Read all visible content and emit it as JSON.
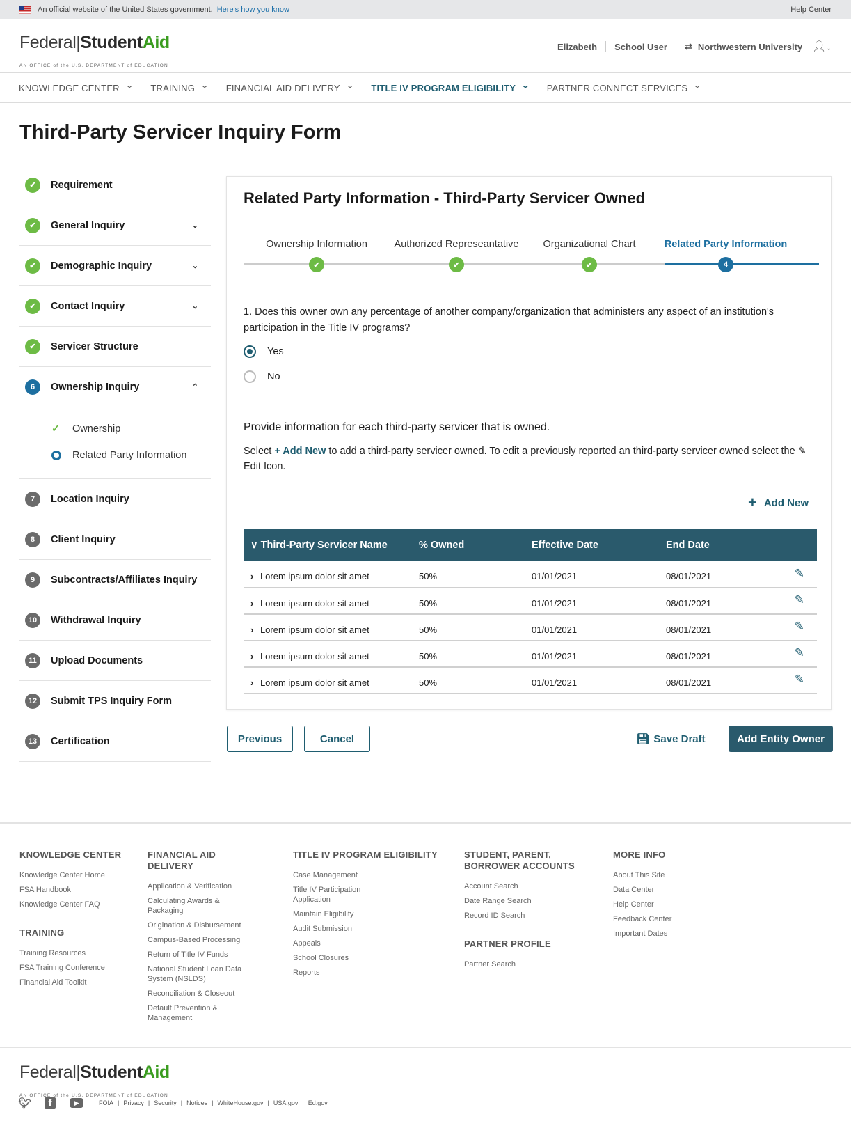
{
  "banner": {
    "text": "An official website of the United States government.",
    "link": "Here's how you know",
    "help": "Help Center"
  },
  "logo": {
    "federal": "Federal",
    "student": "Student",
    "aid": "Aid",
    "sub": "AN OFFICE of the U.S. DEPARTMENT of EDUCATION"
  },
  "user": {
    "name": "Elizabeth",
    "role": "School User",
    "org": "Northwestern University"
  },
  "nav": [
    {
      "label": "KNOWLEDGE CENTER"
    },
    {
      "label": "TRAINING"
    },
    {
      "label": "FINANCIAL AID DELIVERY"
    },
    {
      "label": "TITLE IV PROGRAM ELIGIBILITY",
      "active": true
    },
    {
      "label": "PARTNER CONNECT SERVICES"
    }
  ],
  "page_title": "Third-Party Servicer Inquiry Form",
  "sidebar": [
    {
      "label": "Requirement",
      "status": "done",
      "expand": ""
    },
    {
      "label": "General Inquiry",
      "status": "done",
      "expand": "v"
    },
    {
      "label": "Demographic Inquiry",
      "status": "done",
      "expand": "v"
    },
    {
      "label": "Contact Inquiry",
      "status": "done",
      "expand": "v"
    },
    {
      "label": "Servicer Structure",
      "status": "done",
      "expand": ""
    },
    {
      "label": "Ownership Inquiry",
      "status": "current",
      "num": "6",
      "expand": "^",
      "subitems": [
        {
          "label": "Ownership",
          "status": "done"
        },
        {
          "label": "Related Party Information",
          "status": "current"
        }
      ]
    },
    {
      "label": "Location Inquiry",
      "status": "todo",
      "num": "7",
      "expand": ""
    },
    {
      "label": "Client Inquiry",
      "status": "todo",
      "num": "8",
      "expand": ""
    },
    {
      "label": "Subcontracts/Affiliates Inquiry",
      "status": "todo",
      "num": "9",
      "expand": ""
    },
    {
      "label": "Withdrawal Inquiry",
      "status": "todo",
      "num": "10",
      "expand": ""
    },
    {
      "label": "Upload Documents",
      "status": "todo",
      "num": "11",
      "expand": ""
    },
    {
      "label": "Submit TPS Inquiry Form",
      "status": "todo",
      "num": "12",
      "expand": ""
    },
    {
      "label": "Certification",
      "status": "todo",
      "num": "13",
      "expand": ""
    }
  ],
  "card": {
    "title": "Related Party Information - Third-Party Servicer Owned",
    "steps": [
      {
        "label": "Ownership Information",
        "status": "done"
      },
      {
        "label": "Authorized Represeantative",
        "status": "done"
      },
      {
        "label": "Organizational Chart",
        "status": "done"
      },
      {
        "label": "Related Party Information",
        "status": "current",
        "num": "4"
      }
    ],
    "question": "1. Does this owner own any percentage of another company/organization that administers any aspect of an institution's participation in the Title IV programs?",
    "options": [
      {
        "label": "Yes",
        "selected": true
      },
      {
        "label": "No",
        "selected": false
      }
    ],
    "provide": "Provide information for each third-party servicer that is owned.",
    "instr_1": "Select ",
    "instr_add": "+ Add New",
    "instr_2": " to add a third-party servicer owned. To edit a previously reported an third-party servicer owned select the ",
    "instr_3": " Edit Icon.",
    "add_new": "Add New",
    "table": {
      "headers": [
        "Third-Party Servicer Name",
        "% Owned",
        "Effective  Date",
        "End Date"
      ],
      "rows": [
        [
          "Lorem ipsum dolor sit amet",
          "50%",
          "01/01/2021",
          "08/01/2021"
        ],
        [
          "Lorem ipsum dolor sit amet",
          "50%",
          "01/01/2021",
          "08/01/2021"
        ],
        [
          "Lorem ipsum dolor sit amet",
          "50%",
          "01/01/2021",
          "08/01/2021"
        ],
        [
          "Lorem ipsum dolor sit amet",
          "50%",
          "01/01/2021",
          "08/01/2021"
        ],
        [
          "Lorem ipsum dolor sit amet",
          "50%",
          "01/01/2021",
          "08/01/2021"
        ]
      ]
    }
  },
  "actions": {
    "previous": "Previous",
    "cancel": "Cancel",
    "save": "Save Draft",
    "add_owner": "Add Entity Owner"
  },
  "footer": {
    "cols": [
      {
        "sections": [
          {
            "title": "KNOWLEDGE CENTER",
            "links": [
              "Knowledge Center Home",
              "FSA Handbook",
              "Knowledge Center FAQ"
            ]
          },
          {
            "title": "TRAINING",
            "links": [
              "Training Resources",
              "FSA Training Conference",
              "Financial Aid Toolkit"
            ]
          }
        ]
      },
      {
        "sections": [
          {
            "title": "FINANCIAL AID DELIVERY",
            "links": [
              "Application & Verification",
              "Calculating Awards & Packaging",
              "Origination & Disbursement",
              "Campus-Based Processing",
              "Return of Title IV Funds",
              "National Student Loan Data System (NSLDS)",
              "Reconciliation & Closeout",
              "Default Prevention & Management"
            ]
          }
        ]
      },
      {
        "sections": [
          {
            "title": "TITLE IV PROGRAM ELIGIBILITY",
            "links": [
              "Case Management",
              "Title IV Participation Application",
              "Maintain Eligibility",
              "Audit Submission",
              "Appeals",
              "School Closures",
              "Reports"
            ]
          }
        ]
      },
      {
        "sections": [
          {
            "title": "STUDENT, PARENT, BORROWER ACCOUNTS",
            "links": [
              "Account Search",
              "Date Range Search",
              "Record ID Search"
            ]
          },
          {
            "title": "PARTNER PROFILE",
            "links": [
              "Partner Search"
            ]
          }
        ]
      },
      {
        "sections": [
          {
            "title": "MORE INFO",
            "links": [
              "About This Site",
              "Data Center",
              "Help Center",
              "Feedback Center",
              "Important Dates"
            ]
          }
        ]
      }
    ],
    "legal": [
      "FOIA",
      "Privacy",
      "Security",
      "Notices",
      "WhiteHouse.gov",
      "USA.gov",
      "Ed.gov"
    ],
    "social": [
      "twitter-icon",
      "facebook-icon",
      "youtube-icon"
    ]
  },
  "colors": {
    "primary": "#2a5a6c",
    "active": "#1d6fa0",
    "success": "#6dbb45"
  }
}
